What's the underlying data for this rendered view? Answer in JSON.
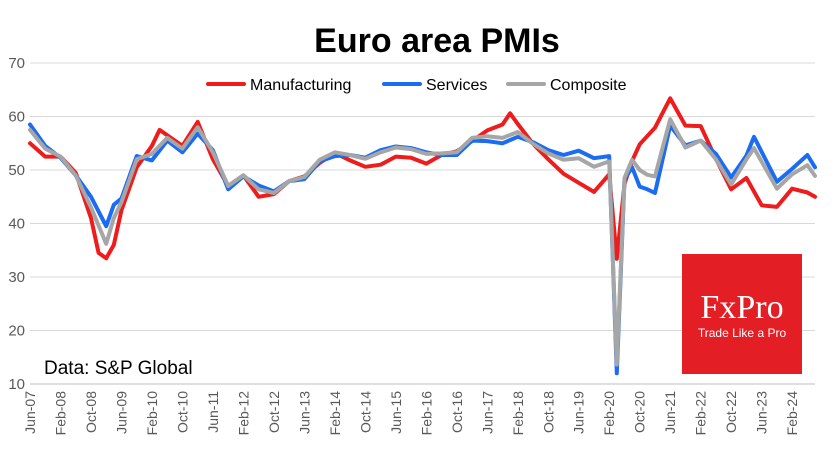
{
  "chart_data": {
    "type": "line",
    "title": "Euro area PMIs",
    "source_note": "Data: S&P Global",
    "xlabel": "",
    "ylabel": "",
    "ylim": [
      10,
      70
    ],
    "yticks": [
      10,
      20,
      30,
      40,
      50,
      60,
      70
    ],
    "xlim": [
      "Jun-07",
      "Aug-24"
    ],
    "grid": true,
    "legend_position": "top-center",
    "x_tick_labels": [
      "Jun-07",
      "Feb-08",
      "Oct-08",
      "Jun-09",
      "Feb-10",
      "Oct-10",
      "Jun-11",
      "Feb-12",
      "Oct-12",
      "Jun-13",
      "Feb-14",
      "Oct-14",
      "Jun-15",
      "Feb-16",
      "Oct-16",
      "Jun-17",
      "Feb-18",
      "Oct-18",
      "Jun-19",
      "Feb-20",
      "Oct-20",
      "Jun-21",
      "Feb-22",
      "Oct-22",
      "Jun-23",
      "Feb-24"
    ],
    "series": [
      {
        "name": "Manufacturing",
        "color": "#ee1c1c",
        "points": [
          [
            "Jun-07",
            55.0
          ],
          [
            "Oct-07",
            52.5
          ],
          [
            "Feb-08",
            52.5
          ],
          [
            "Jun-08",
            49.5
          ],
          [
            "Oct-08",
            41.0
          ],
          [
            "Dec-08",
            34.5
          ],
          [
            "Feb-09",
            33.5
          ],
          [
            "Apr-09",
            36.0
          ],
          [
            "Jun-09",
            42.5
          ],
          [
            "Oct-09",
            50.5
          ],
          [
            "Feb-10",
            54.5
          ],
          [
            "Apr-10",
            57.5
          ],
          [
            "Oct-10",
            54.5
          ],
          [
            "Feb-11",
            59.0
          ],
          [
            "Jun-11",
            52.0
          ],
          [
            "Oct-11",
            47.0
          ],
          [
            "Feb-12",
            49.0
          ],
          [
            "Jun-12",
            45.0
          ],
          [
            "Oct-12",
            45.5
          ],
          [
            "Feb-13",
            47.9
          ],
          [
            "Jun-13",
            48.8
          ],
          [
            "Oct-13",
            51.3
          ],
          [
            "Feb-14",
            53.2
          ],
          [
            "Jun-14",
            51.8
          ],
          [
            "Oct-14",
            50.6
          ],
          [
            "Feb-15",
            51.0
          ],
          [
            "Jun-15",
            52.5
          ],
          [
            "Oct-15",
            52.3
          ],
          [
            "Feb-16",
            51.2
          ],
          [
            "Jun-16",
            52.8
          ],
          [
            "Oct-16",
            53.5
          ],
          [
            "Feb-17",
            55.4
          ],
          [
            "Jun-17",
            57.4
          ],
          [
            "Oct-17",
            58.5
          ],
          [
            "Dec-17",
            60.6
          ],
          [
            "Feb-18",
            58.6
          ],
          [
            "Jun-18",
            54.9
          ],
          [
            "Oct-18",
            52.0
          ],
          [
            "Feb-19",
            49.3
          ],
          [
            "Jun-19",
            47.6
          ],
          [
            "Oct-19",
            45.9
          ],
          [
            "Feb-20",
            49.2
          ],
          [
            "Apr-20",
            33.4
          ],
          [
            "Jun-20",
            47.4
          ],
          [
            "Aug-20",
            51.7
          ],
          [
            "Oct-20",
            54.8
          ],
          [
            "Feb-21",
            57.9
          ],
          [
            "Jun-21",
            63.4
          ],
          [
            "Oct-21",
            58.3
          ],
          [
            "Feb-22",
            58.2
          ],
          [
            "Jun-22",
            52.1
          ],
          [
            "Oct-22",
            46.4
          ],
          [
            "Feb-23",
            48.5
          ],
          [
            "Jun-23",
            43.4
          ],
          [
            "Oct-23",
            43.1
          ],
          [
            "Feb-24",
            46.5
          ],
          [
            "Jun-24",
            45.8
          ],
          [
            "Aug-24",
            45.0
          ]
        ]
      },
      {
        "name": "Services",
        "color": "#1b6cf2",
        "points": [
          [
            "Jun-07",
            58.5
          ],
          [
            "Oct-07",
            54.5
          ],
          [
            "Feb-08",
            52.3
          ],
          [
            "Jun-08",
            49.0
          ],
          [
            "Oct-08",
            45.0
          ],
          [
            "Feb-09",
            39.5
          ],
          [
            "Apr-09",
            43.5
          ],
          [
            "Jun-09",
            44.7
          ],
          [
            "Oct-09",
            52.6
          ],
          [
            "Feb-10",
            51.8
          ],
          [
            "Jun-10",
            55.5
          ],
          [
            "Oct-10",
            53.3
          ],
          [
            "Feb-11",
            56.8
          ],
          [
            "Jun-11",
            53.7
          ],
          [
            "Oct-11",
            46.4
          ],
          [
            "Feb-12",
            48.8
          ],
          [
            "Jun-12",
            47.1
          ],
          [
            "Oct-12",
            46.0
          ],
          [
            "Feb-13",
            47.9
          ],
          [
            "Jun-13",
            48.3
          ],
          [
            "Oct-13",
            51.6
          ],
          [
            "Feb-14",
            52.6
          ],
          [
            "Jun-14",
            52.8
          ],
          [
            "Oct-14",
            52.3
          ],
          [
            "Feb-15",
            53.7
          ],
          [
            "Jun-15",
            54.4
          ],
          [
            "Oct-15",
            54.1
          ],
          [
            "Feb-16",
            53.3
          ],
          [
            "Jun-16",
            52.8
          ],
          [
            "Oct-16",
            52.8
          ],
          [
            "Feb-17",
            55.5
          ],
          [
            "Jun-17",
            55.4
          ],
          [
            "Oct-17",
            55.0
          ],
          [
            "Feb-18",
            56.2
          ],
          [
            "Jun-18",
            55.2
          ],
          [
            "Oct-18",
            53.7
          ],
          [
            "Feb-19",
            52.8
          ],
          [
            "Jun-19",
            53.6
          ],
          [
            "Oct-19",
            52.2
          ],
          [
            "Feb-20",
            52.6
          ],
          [
            "Apr-20",
            12.0
          ],
          [
            "Jun-20",
            48.3
          ],
          [
            "Aug-20",
            50.5
          ],
          [
            "Oct-20",
            46.9
          ],
          [
            "Dec-20",
            46.4
          ],
          [
            "Feb-21",
            45.7
          ],
          [
            "Jun-21",
            58.3
          ],
          [
            "Oct-21",
            54.6
          ],
          [
            "Feb-22",
            55.5
          ],
          [
            "Jun-22",
            53.0
          ],
          [
            "Oct-22",
            48.6
          ],
          [
            "Feb-23",
            52.7
          ],
          [
            "Apr-23",
            56.2
          ],
          [
            "Oct-23",
            47.8
          ],
          [
            "Feb-24",
            50.2
          ],
          [
            "Jun-24",
            52.8
          ],
          [
            "Aug-24",
            50.5
          ]
        ]
      },
      {
        "name": "Composite",
        "color": "#a6a6a6",
        "points": [
          [
            "Jun-07",
            57.5
          ],
          [
            "Oct-07",
            54.0
          ],
          [
            "Feb-08",
            52.5
          ],
          [
            "Jun-08",
            49.0
          ],
          [
            "Oct-08",
            43.0
          ],
          [
            "Feb-09",
            36.2
          ],
          [
            "Apr-09",
            41.0
          ],
          [
            "Jun-09",
            44.0
          ],
          [
            "Oct-09",
            52.0
          ],
          [
            "Feb-10",
            53.0
          ],
          [
            "Jun-10",
            56.0
          ],
          [
            "Oct-10",
            54.0
          ],
          [
            "Feb-11",
            58.0
          ],
          [
            "Jun-11",
            53.3
          ],
          [
            "Oct-11",
            47.0
          ],
          [
            "Feb-12",
            49.0
          ],
          [
            "Jun-12",
            46.4
          ],
          [
            "Oct-12",
            45.7
          ],
          [
            "Feb-13",
            47.9
          ],
          [
            "Jun-13",
            48.7
          ],
          [
            "Oct-13",
            51.9
          ],
          [
            "Feb-14",
            53.3
          ],
          [
            "Jun-14",
            52.8
          ],
          [
            "Oct-14",
            52.1
          ],
          [
            "Feb-15",
            53.3
          ],
          [
            "Jun-15",
            54.2
          ],
          [
            "Oct-15",
            53.9
          ],
          [
            "Feb-16",
            53.0
          ],
          [
            "Jun-16",
            53.1
          ],
          [
            "Oct-16",
            53.3
          ],
          [
            "Feb-17",
            56.0
          ],
          [
            "Jun-17",
            56.3
          ],
          [
            "Oct-17",
            56.0
          ],
          [
            "Feb-18",
            57.1
          ],
          [
            "Jun-18",
            54.9
          ],
          [
            "Oct-18",
            53.1
          ],
          [
            "Feb-19",
            51.9
          ],
          [
            "Jun-19",
            52.2
          ],
          [
            "Oct-19",
            50.6
          ],
          [
            "Feb-20",
            51.6
          ],
          [
            "Apr-20",
            13.6
          ],
          [
            "Jun-20",
            48.5
          ],
          [
            "Aug-20",
            51.9
          ],
          [
            "Oct-20",
            50.0
          ],
          [
            "Dec-20",
            49.1
          ],
          [
            "Feb-21",
            48.8
          ],
          [
            "Jun-21",
            59.5
          ],
          [
            "Oct-21",
            54.2
          ],
          [
            "Feb-22",
            55.5
          ],
          [
            "Jun-22",
            52.0
          ],
          [
            "Oct-22",
            47.3
          ],
          [
            "Feb-23",
            52.0
          ],
          [
            "Apr-23",
            54.1
          ],
          [
            "Oct-23",
            46.5
          ],
          [
            "Feb-24",
            49.2
          ],
          [
            "Jun-24",
            50.9
          ],
          [
            "Aug-24",
            48.9
          ]
        ]
      }
    ]
  },
  "logo": {
    "brand": "FxPro",
    "tagline": "Trade Like a Pro",
    "background": "#e31e24"
  }
}
